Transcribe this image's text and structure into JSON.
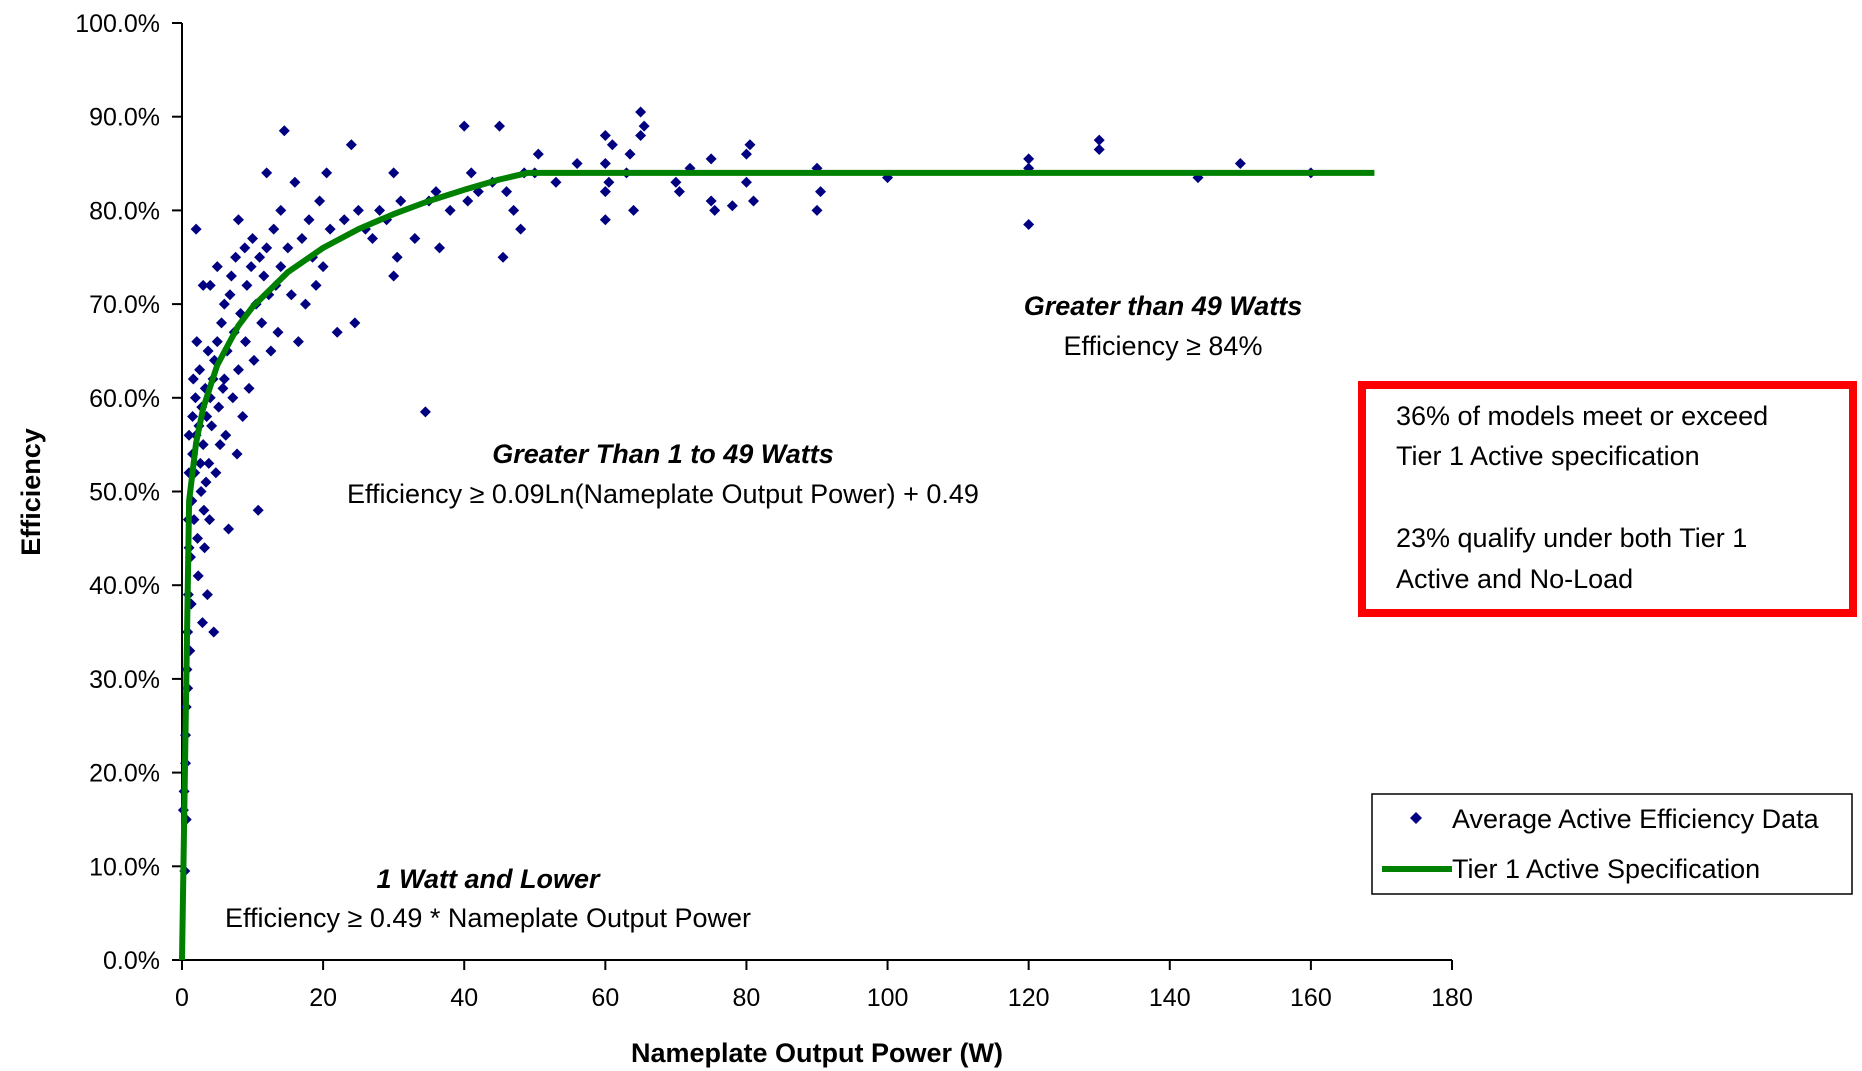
{
  "chart_data": {
    "type": "scatter",
    "xlabel": "Nameplate Output Power (W)",
    "ylabel": "Efficiency",
    "xlim": [
      0,
      180
    ],
    "ylim": [
      0,
      100
    ],
    "x_ticks": [
      0,
      20,
      40,
      60,
      80,
      100,
      120,
      140,
      160,
      180
    ],
    "x_tick_labels": [
      "0",
      "20",
      "40",
      "60",
      "80",
      "100",
      "120",
      "140",
      "160",
      "180"
    ],
    "y_ticks": [
      0,
      10,
      20,
      30,
      40,
      50,
      60,
      70,
      80,
      90,
      100
    ],
    "y_tick_labels": [
      "0.0%",
      "10.0%",
      "20.0%",
      "30.0%",
      "40.0%",
      "50.0%",
      "60.0%",
      "70.0%",
      "80.0%",
      "90.0%",
      "100.0%"
    ],
    "grid": false,
    "legend_position": "bottom-right",
    "series": [
      {
        "name": "Average Active Efficiency Data",
        "kind": "scatter",
        "marker": "diamond",
        "color": "#000080",
        "points": [
          [
            0.2,
            16
          ],
          [
            0.3,
            18
          ],
          [
            0.4,
            9.5
          ],
          [
            0.5,
            24
          ],
          [
            0.6,
            27
          ],
          [
            0.7,
            31
          ],
          [
            0.8,
            35
          ],
          [
            0.9,
            39
          ],
          [
            1.0,
            44
          ],
          [
            1.0,
            52
          ],
          [
            0.5,
            21
          ],
          [
            0.6,
            15
          ],
          [
            0.8,
            29
          ],
          [
            0.9,
            47
          ],
          [
            1.0,
            56
          ],
          [
            1.1,
            33
          ],
          [
            1.2,
            43
          ],
          [
            1.3,
            38
          ],
          [
            1.4,
            49
          ],
          [
            1.5,
            58
          ],
          [
            1.5,
            54
          ],
          [
            1.6,
            62
          ],
          [
            1.7,
            47
          ],
          [
            1.8,
            52
          ],
          [
            1.9,
            60
          ],
          [
            2.0,
            56
          ],
          [
            2.0,
            78
          ],
          [
            2.1,
            66
          ],
          [
            2.2,
            45
          ],
          [
            2.3,
            41
          ],
          [
            2.4,
            57
          ],
          [
            2.5,
            63
          ],
          [
            2.6,
            53
          ],
          [
            2.7,
            50
          ],
          [
            2.8,
            59
          ],
          [
            2.9,
            36
          ],
          [
            3.0,
            55
          ],
          [
            3.0,
            72
          ],
          [
            3.1,
            48
          ],
          [
            3.2,
            44
          ],
          [
            3.3,
            61
          ],
          [
            3.4,
            51
          ],
          [
            3.5,
            58
          ],
          [
            3.6,
            39
          ],
          [
            3.7,
            65
          ],
          [
            3.8,
            53
          ],
          [
            3.9,
            47
          ],
          [
            4.0,
            60
          ],
          [
            4.0,
            72
          ],
          [
            4.2,
            57
          ],
          [
            4.4,
            62
          ],
          [
            4.5,
            35
          ],
          [
            4.6,
            64
          ],
          [
            4.8,
            52
          ],
          [
            5.0,
            66
          ],
          [
            5.0,
            74
          ],
          [
            5.2,
            59
          ],
          [
            5.4,
            55
          ],
          [
            5.6,
            68
          ],
          [
            5.8,
            61
          ],
          [
            6.0,
            62
          ],
          [
            6.0,
            70
          ],
          [
            6.2,
            56
          ],
          [
            6.4,
            65
          ],
          [
            6.6,
            46
          ],
          [
            6.8,
            71
          ],
          [
            7.0,
            73
          ],
          [
            7.2,
            60
          ],
          [
            7.4,
            67
          ],
          [
            7.6,
            75
          ],
          [
            7.8,
            54
          ],
          [
            8.0,
            63
          ],
          [
            8.0,
            79
          ],
          [
            8.3,
            69
          ],
          [
            8.6,
            58
          ],
          [
            8.9,
            76
          ],
          [
            9.0,
            66
          ],
          [
            9.2,
            72
          ],
          [
            9.5,
            61
          ],
          [
            9.8,
            74
          ],
          [
            10.0,
            77
          ],
          [
            10.2,
            64
          ],
          [
            10.5,
            70
          ],
          [
            10.8,
            48
          ],
          [
            11.0,
            75
          ],
          [
            11.3,
            68
          ],
          [
            11.6,
            73
          ],
          [
            12.0,
            84
          ],
          [
            12.0,
            76
          ],
          [
            12.3,
            71
          ],
          [
            12.6,
            65
          ],
          [
            13.0,
            78
          ],
          [
            13.3,
            72
          ],
          [
            13.6,
            67
          ],
          [
            14.0,
            74
          ],
          [
            14.0,
            80
          ],
          [
            14.5,
            88.5
          ],
          [
            15.0,
            76
          ],
          [
            15.5,
            71
          ],
          [
            16.0,
            83
          ],
          [
            16.5,
            66
          ],
          [
            17.0,
            77
          ],
          [
            17.5,
            70
          ],
          [
            18.0,
            79
          ],
          [
            18.5,
            75
          ],
          [
            19.0,
            72
          ],
          [
            19.5,
            81
          ],
          [
            20.0,
            74
          ],
          [
            20.5,
            84
          ],
          [
            21.0,
            78
          ],
          [
            22.0,
            67
          ],
          [
            23.0,
            79
          ],
          [
            24.0,
            87
          ],
          [
            24.5,
            68
          ],
          [
            25.0,
            80
          ],
          [
            26.0,
            78
          ],
          [
            27.0,
            77
          ],
          [
            28.0,
            80
          ],
          [
            29.0,
            79
          ],
          [
            30.0,
            84
          ],
          [
            30.0,
            73
          ],
          [
            30.5,
            75
          ],
          [
            31.0,
            81
          ],
          [
            33.0,
            77
          ],
          [
            34.5,
            58.5
          ],
          [
            35.0,
            81
          ],
          [
            36.0,
            82
          ],
          [
            36.5,
            76
          ],
          [
            38.0,
            80
          ],
          [
            40.0,
            89
          ],
          [
            40.5,
            81
          ],
          [
            41.0,
            84
          ],
          [
            42.0,
            82
          ],
          [
            44.0,
            83
          ],
          [
            45.0,
            89
          ],
          [
            45.5,
            75
          ],
          [
            46.0,
            82
          ],
          [
            47.0,
            80
          ],
          [
            48.0,
            78
          ],
          [
            48.5,
            84
          ],
          [
            50.0,
            84
          ],
          [
            50.5,
            86
          ],
          [
            53.0,
            83
          ],
          [
            56.0,
            85
          ],
          [
            60.0,
            88
          ],
          [
            60.0,
            82
          ],
          [
            60.0,
            79
          ],
          [
            60.0,
            85
          ],
          [
            60.5,
            83
          ],
          [
            61.0,
            87
          ],
          [
            63.0,
            84
          ],
          [
            63.5,
            86
          ],
          [
            64.0,
            80
          ],
          [
            65.0,
            88
          ],
          [
            65.0,
            90.5
          ],
          [
            65.5,
            89
          ],
          [
            70.0,
            83
          ],
          [
            70.5,
            82
          ],
          [
            72.0,
            84.5
          ],
          [
            75.0,
            85.5
          ],
          [
            75.0,
            81
          ],
          [
            75.5,
            80
          ],
          [
            78.0,
            80.5
          ],
          [
            80.0,
            86
          ],
          [
            80.0,
            83
          ],
          [
            80.5,
            87
          ],
          [
            81.0,
            81
          ],
          [
            90.0,
            84.5
          ],
          [
            90.0,
            80
          ],
          [
            90.5,
            82
          ],
          [
            100.0,
            83.5
          ],
          [
            120.0,
            84.5
          ],
          [
            120.0,
            78.5
          ],
          [
            120.0,
            85.5
          ],
          [
            130.0,
            86.5
          ],
          [
            130.0,
            87.5
          ],
          [
            144.0,
            83.5
          ],
          [
            150.0,
            85
          ],
          [
            160.0,
            84
          ]
        ]
      },
      {
        "name": "Tier 1 Active Specification",
        "kind": "line",
        "color": "#008000",
        "points": [
          [
            0,
            0
          ],
          [
            1,
            49
          ],
          [
            2,
            55.2
          ],
          [
            3,
            58.9
          ],
          [
            5,
            63.5
          ],
          [
            8,
            67.7
          ],
          [
            10,
            69.7
          ],
          [
            15,
            73.4
          ],
          [
            20,
            76
          ],
          [
            25,
            78
          ],
          [
            30,
            79.6
          ],
          [
            35,
            81
          ],
          [
            40,
            82.2
          ],
          [
            45,
            83.3
          ],
          [
            49,
            84
          ],
          [
            60,
            84
          ],
          [
            80,
            84
          ],
          [
            100,
            84
          ],
          [
            120,
            84
          ],
          [
            140,
            84
          ],
          [
            160,
            84
          ],
          [
            169,
            84
          ]
        ]
      }
    ],
    "annotations": [
      {
        "id": "tier-low",
        "heading": "1 Watt and Lower",
        "body": "Efficiency ≥ 0.49 * Nameplate Output Power"
      },
      {
        "id": "tier-mid",
        "heading": "Greater Than 1 to 49 Watts",
        "body": "Efficiency ≥ 0.09Ln(Nameplate Output Power) + 0.49"
      },
      {
        "id": "tier-high",
        "heading": "Greater than 49 Watts",
        "body": "Efficiency ≥ 84%"
      }
    ],
    "callout": {
      "line1": "36% of models meet or exceed",
      "line2": "Tier 1 Active specification",
      "line3": "23% qualify under both Tier 1",
      "line4": "Active and No-Load",
      "border_color": "#ff0000"
    }
  }
}
